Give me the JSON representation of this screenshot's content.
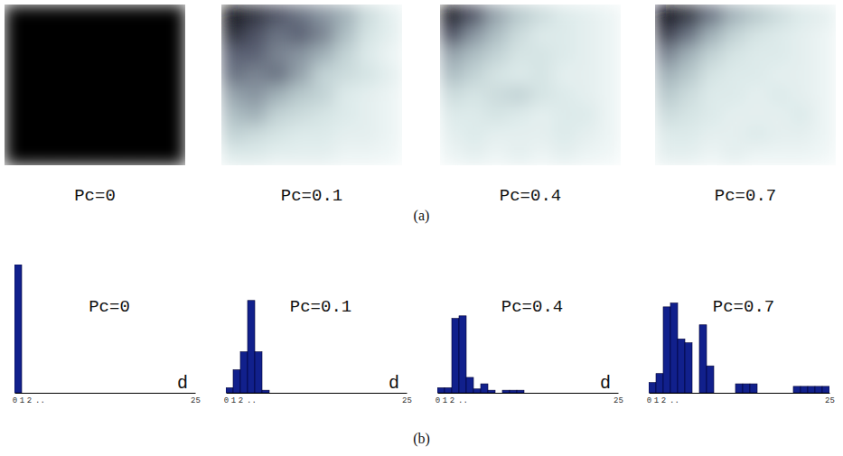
{
  "chart_data": [
    {
      "type": "heatmap",
      "title": "Pc=0",
      "zlim": [
        0,
        1
      ],
      "tick_labels": false,
      "cells": [
        [
          0,
          0,
          0,
          0,
          0,
          0,
          0,
          0
        ],
        [
          0,
          0,
          0,
          0,
          0,
          0,
          0,
          0
        ],
        [
          0,
          0,
          0,
          0,
          0,
          0,
          0,
          0
        ],
        [
          0,
          0,
          0,
          0,
          0,
          0,
          0,
          0
        ],
        [
          0,
          0,
          0,
          0,
          0,
          0,
          0,
          0
        ],
        [
          0,
          0,
          0,
          0,
          0,
          0,
          0,
          0
        ],
        [
          0,
          0,
          0,
          0,
          0,
          0,
          0,
          0
        ],
        [
          0,
          0,
          0,
          0,
          0,
          0,
          0,
          0
        ]
      ]
    },
    {
      "type": "heatmap",
      "title": "Pc=0.1",
      "zlim": [
        0,
        1
      ],
      "tick_labels": false,
      "cells": [
        [
          0.05,
          0.15,
          0.25,
          0.35,
          0.45,
          0.55,
          0.75,
          0.9
        ],
        [
          0.15,
          0.25,
          0.35,
          0.3,
          0.4,
          0.6,
          0.8,
          0.9
        ],
        [
          0.3,
          0.3,
          0.4,
          0.45,
          0.55,
          0.7,
          0.85,
          0.95
        ],
        [
          0.35,
          0.4,
          0.35,
          0.5,
          0.7,
          0.75,
          0.8,
          0.9
        ],
        [
          0.5,
          0.45,
          0.55,
          0.65,
          0.7,
          0.85,
          0.9,
          0.95
        ],
        [
          0.6,
          0.55,
          0.7,
          0.75,
          0.8,
          0.85,
          0.9,
          0.95
        ],
        [
          0.7,
          0.75,
          0.8,
          0.85,
          0.85,
          0.9,
          0.9,
          0.95
        ],
        [
          0.85,
          0.85,
          0.9,
          0.9,
          0.9,
          0.95,
          0.95,
          0.98
        ]
      ]
    },
    {
      "type": "heatmap",
      "title": "Pc=0.4",
      "zlim": [
        0,
        1
      ],
      "tick_labels": false,
      "cells": [
        [
          0.05,
          0.25,
          0.5,
          0.65,
          0.75,
          0.85,
          0.9,
          0.95
        ],
        [
          0.25,
          0.45,
          0.6,
          0.75,
          0.85,
          0.85,
          0.9,
          0.95
        ],
        [
          0.5,
          0.6,
          0.7,
          0.8,
          0.8,
          0.85,
          0.9,
          0.95
        ],
        [
          0.6,
          0.7,
          0.8,
          0.85,
          0.8,
          0.9,
          0.9,
          0.95
        ],
        [
          0.75,
          0.8,
          0.75,
          0.7,
          0.8,
          0.85,
          0.9,
          0.95
        ],
        [
          0.85,
          0.85,
          0.8,
          0.85,
          0.9,
          0.85,
          0.85,
          0.95
        ],
        [
          0.9,
          0.85,
          0.9,
          0.9,
          0.9,
          0.85,
          0.9,
          0.95
        ],
        [
          0.95,
          0.9,
          0.95,
          0.9,
          0.95,
          0.9,
          0.95,
          0.98
        ]
      ]
    },
    {
      "type": "heatmap",
      "title": "Pc=0.7",
      "zlim": [
        0,
        1
      ],
      "tick_labels": false,
      "cells": [
        [
          0.02,
          0.15,
          0.35,
          0.55,
          0.65,
          0.75,
          0.85,
          0.9
        ],
        [
          0.2,
          0.35,
          0.55,
          0.7,
          0.8,
          0.85,
          0.9,
          0.95
        ],
        [
          0.4,
          0.55,
          0.7,
          0.8,
          0.85,
          0.85,
          0.9,
          0.95
        ],
        [
          0.55,
          0.65,
          0.8,
          0.85,
          0.85,
          0.9,
          0.9,
          0.95
        ],
        [
          0.65,
          0.75,
          0.85,
          0.85,
          0.9,
          0.85,
          0.9,
          0.95
        ],
        [
          0.75,
          0.8,
          0.85,
          0.9,
          0.9,
          0.9,
          0.85,
          0.95
        ],
        [
          0.85,
          0.85,
          0.9,
          0.9,
          0.85,
          0.9,
          0.9,
          0.95
        ],
        [
          0.9,
          0.9,
          0.95,
          0.9,
          0.95,
          0.95,
          0.95,
          0.98
        ]
      ]
    },
    {
      "type": "histogram",
      "title": "Pc=0",
      "x_label": "d",
      "color": "#11208c",
      "tick_labels": "x",
      "xlim": [
        0,
        25
      ],
      "ylim": [
        0,
        100
      ],
      "xticks": [
        0,
        1,
        2,
        {
          "value": 3.5,
          "label": ".."
        },
        25
      ],
      "bins": [
        0,
        1,
        2,
        3,
        4,
        5,
        6,
        7,
        8,
        9,
        10,
        11,
        12,
        13,
        14,
        15,
        16,
        17,
        18,
        19,
        20,
        21,
        22,
        23,
        24,
        25
      ],
      "counts": [
        100,
        0,
        0,
        0,
        0,
        0,
        0,
        0,
        0,
        0,
        0,
        0,
        0,
        0,
        0,
        0,
        0,
        0,
        0,
        0,
        0,
        0,
        0,
        0,
        0
      ]
    },
    {
      "type": "histogram",
      "title": "Pc=0.1",
      "x_label": "d",
      "color": "#11208c",
      "tick_labels": "x",
      "xlim": [
        0,
        25
      ],
      "ylim": [
        0,
        100
      ],
      "xticks": [
        0,
        1,
        2,
        {
          "value": 3.5,
          "label": ".."
        },
        25
      ],
      "bins": [
        0,
        1,
        2,
        3,
        4,
        5,
        6,
        7,
        8,
        9,
        10,
        11,
        12,
        13,
        14,
        15,
        16,
        17,
        18,
        19,
        20,
        21,
        22,
        23,
        24,
        25
      ],
      "counts": [
        4,
        18,
        32,
        72,
        32,
        2,
        0,
        0,
        0,
        0,
        0,
        0,
        0,
        0,
        0,
        0,
        0,
        0,
        0,
        0,
        0,
        0,
        0,
        0,
        0
      ]
    },
    {
      "type": "histogram",
      "title": "Pc=0.4",
      "x_label": "d",
      "color": "#11208c",
      "tick_labels": "x",
      "xlim": [
        0,
        25
      ],
      "ylim": [
        0,
        100
      ],
      "xticks": [
        0,
        1,
        2,
        {
          "value": 3.5,
          "label": ".."
        },
        25
      ],
      "bins": [
        0,
        1,
        2,
        3,
        4,
        5,
        6,
        7,
        8,
        9,
        10,
        11,
        12,
        13,
        14,
        15,
        16,
        17,
        18,
        19,
        20,
        21,
        22,
        23,
        24,
        25
      ],
      "counts": [
        4,
        4,
        58,
        60,
        12,
        3,
        7,
        2,
        0,
        2,
        2,
        2,
        0,
        0,
        0,
        0,
        0,
        0,
        0,
        0,
        0,
        0,
        0,
        0,
        0
      ]
    },
    {
      "type": "histogram",
      "title": "Pc=0.7",
      "color": "#11208c",
      "tick_labels": "x",
      "xlim": [
        0,
        25
      ],
      "ylim": [
        0,
        100
      ],
      "xticks": [
        0,
        1,
        2,
        {
          "value": 3.5,
          "label": ".."
        },
        25
      ],
      "bins": [
        0,
        1,
        2,
        3,
        4,
        5,
        6,
        7,
        8,
        9,
        10,
        11,
        12,
        13,
        14,
        15,
        16,
        17,
        18,
        19,
        20,
        21,
        22,
        23,
        24,
        25
      ],
      "counts": [
        8,
        15,
        67,
        70,
        42,
        39,
        0,
        53,
        21,
        0,
        0,
        0,
        7,
        7,
        7,
        0,
        0,
        0,
        0,
        0,
        5,
        5,
        5,
        5,
        5
      ]
    }
  ],
  "panel_labels": [
    "(a)",
    "(b)"
  ]
}
